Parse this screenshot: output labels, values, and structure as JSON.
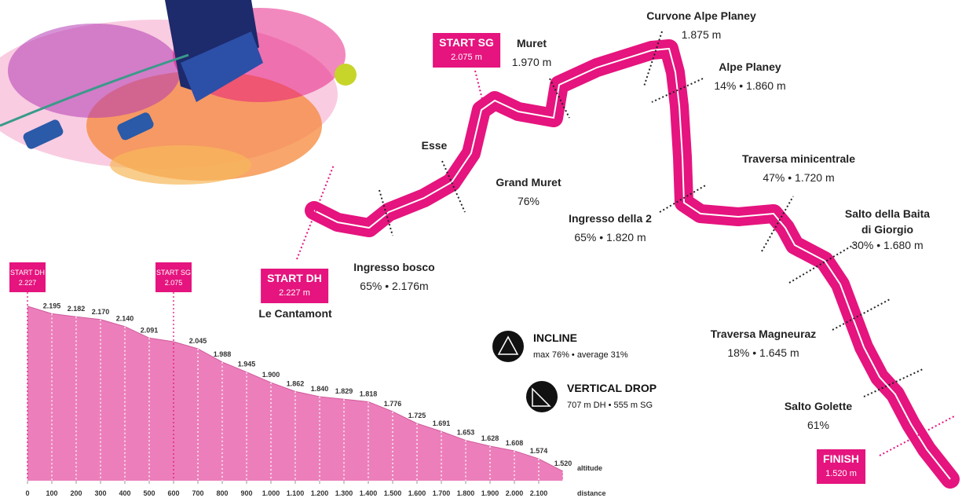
{
  "chart_data": {
    "type": "area",
    "x": [
      0,
      100,
      200,
      300,
      400,
      500,
      600,
      700,
      800,
      900,
      1000,
      1100,
      1200,
      1300,
      1400,
      1500,
      1600,
      1700,
      1800,
      1900,
      2000,
      2100,
      2200
    ],
    "values": [
      2227,
      2195,
      2182,
      2170,
      2140,
      2091,
      2075,
      2045,
      1988,
      1945,
      1900,
      1862,
      1840,
      1829,
      1818,
      1776,
      1725,
      1691,
      1653,
      1628,
      1608,
      1574,
      1520
    ],
    "value_labels": [
      "2.227",
      "2.195",
      "2.182",
      "2.170",
      "2.140",
      "2.091",
      "2.075",
      "2.045",
      "1.988",
      "1.945",
      "1.900",
      "1.862",
      "1.840",
      "1.829",
      "1.818",
      "1.776",
      "1.725",
      "1.691",
      "1.653",
      "1.628",
      "1.608",
      "1.574",
      "1.520"
    ],
    "color": "#ec7fbb",
    "xlim": [
      0,
      2200
    ],
    "ylim": [
      1480,
      2250
    ],
    "xticks": [
      0,
      100,
      200,
      300,
      400,
      500,
      600,
      700,
      800,
      900,
      {
        "value": 1000,
        "label": "1.000"
      },
      {
        "value": 1100,
        "label": "1.100"
      },
      {
        "value": 1200,
        "label": "1.200"
      },
      {
        "value": 1300,
        "label": "1.300"
      },
      {
        "value": 1400,
        "label": "1.400"
      },
      {
        "value": 1500,
        "label": "1.500"
      },
      {
        "value": 1600,
        "label": "1.600"
      },
      {
        "value": 1700,
        "label": "1.700"
      },
      {
        "value": 1800,
        "label": "1.800"
      },
      {
        "value": 1900,
        "label": "1.900"
      },
      {
        "value": 2000,
        "label": "2.000"
      },
      {
        "value": 2100,
        "label": "2.100"
      }
    ],
    "xlabel": "distance",
    "ylabel": "altitude",
    "start_markers": [
      "START DH",
      "START SG"
    ]
  },
  "course": {
    "labels": [
      {
        "name": "START SG",
        "detail": "2.075 m"
      },
      {
        "name": "Muret",
        "detail": "1.970 m"
      },
      {
        "name": "Curvone Alpe Planey",
        "detail": "1.875 m"
      },
      {
        "name": "Alpe Planey",
        "detail": "14% • 1.860 m"
      },
      {
        "name": "Esse"
      },
      {
        "name": "Grand Muret",
        "detail": "76%"
      },
      {
        "name": "Ingresso della 2",
        "detail": "65% • 1.820 m"
      },
      {
        "name": "Traversa minicentrale",
        "detail": "47% • 1.720 m"
      },
      {
        "name": "Salto della Baita di Giorgio",
        "detail": "30% • 1.680 m"
      },
      {
        "name": "START DH",
        "detail": "2.227 m"
      },
      {
        "name": "Le Cantamont"
      },
      {
        "name": "Ingresso bosco",
        "detail": "65% • 2.176m"
      },
      {
        "name": "Traversa Magneuraz",
        "detail": "18% • 1.645 m"
      },
      {
        "name": "Salto Golette",
        "detail": "61%"
      },
      {
        "name": "FINISH",
        "detail": "1.520 m"
      }
    ]
  },
  "legend": [
    {
      "title": "INCLINE",
      "detail": "max 76% • average 31%"
    },
    {
      "title": "VERTICAL DROP",
      "detail": "707 m DH • 555 m SG"
    }
  ]
}
